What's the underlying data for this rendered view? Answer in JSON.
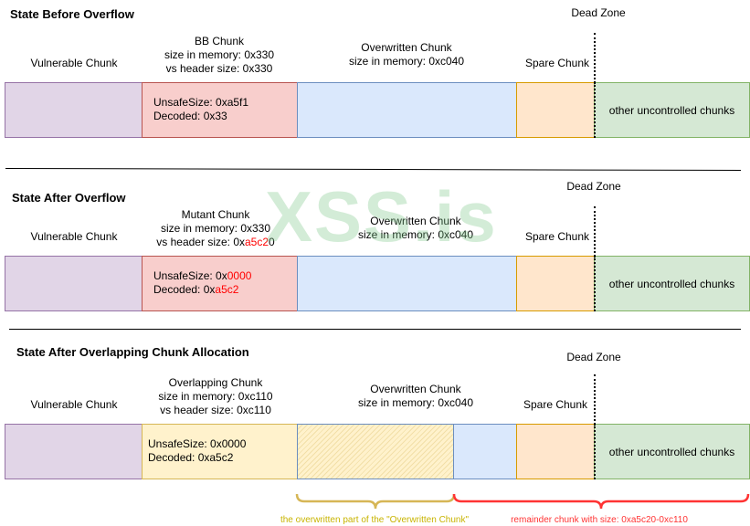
{
  "watermark": "XSS.is",
  "sections": [
    {
      "title": "State Before Overflow",
      "dead_zone": "Dead Zone",
      "vulnerable": "Vulnerable Chunk",
      "mid_chunk": {
        "name": "BB Chunk",
        "mem": "size in memory: 0x330",
        "hdr_prefix": "vs header size: 0x330",
        "hdr_red": ""
      },
      "inner": {
        "unsafe_prefix": "UnsafeSize: 0xa5f1",
        "unsafe_red": "",
        "decoded_prefix": "Decoded: 0x33",
        "decoded_red": ""
      },
      "overwritten": {
        "name": "Overwritten Chunk",
        "mem": "size in memory: 0xc040"
      },
      "spare": "Spare Chunk",
      "other": "other uncontrolled chunks"
    },
    {
      "title": "State After Overflow",
      "dead_zone": "Dead Zone",
      "vulnerable": "Vulnerable Chunk",
      "mid_chunk": {
        "name": "Mutant Chunk",
        "mem": "size in memory: 0x330",
        "hdr_prefix": "vs header size: 0x",
        "hdr_red": "a5c2",
        "hdr_suffix": "0"
      },
      "inner": {
        "unsafe_prefix": "UnsafeSize: 0x",
        "unsafe_red": "0000",
        "decoded_prefix": "Decoded: 0x",
        "decoded_red": "a5c2"
      },
      "overwritten": {
        "name": "Overwritten Chunk",
        "mem": "size in memory: 0xc040"
      },
      "spare": "Spare Chunk",
      "other": "other uncontrolled chunks"
    },
    {
      "title": "State After Overlapping Chunk Allocation",
      "dead_zone": "Dead Zone",
      "vulnerable": "Vulnerable Chunk",
      "mid_chunk": {
        "name": "Overlapping Chunk",
        "mem": "size in memory: 0xc110",
        "hdr_prefix": "vs header size: 0xc110",
        "hdr_red": ""
      },
      "inner": {
        "unsafe_prefix": "UnsafeSize: 0x0000",
        "unsafe_red": "",
        "decoded_prefix": "Decoded: 0xa5c2",
        "decoded_red": ""
      },
      "overwritten": {
        "name": "Overwritten Chunk",
        "mem": "size in memory: 0xc040"
      },
      "spare": "Spare Chunk",
      "other": "other uncontrolled chunks"
    }
  ],
  "braces": {
    "overwritten_part": "the overwritten part of the \"Overwritten Chunk\"",
    "remainder": "remainder chunk with size: 0xa5c20-0xc110"
  },
  "colors": {
    "purple": "#e1d5e7",
    "red": "#f8cecc",
    "blue": "#dae8fc",
    "orange": "#ffe6cc",
    "green": "#d5e8d4",
    "yellow": "#fff2cc",
    "gold_brace": "#d6b656",
    "red_brace": "#ff3333"
  }
}
